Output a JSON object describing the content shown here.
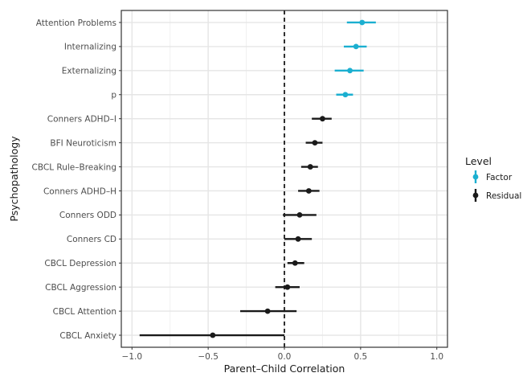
{
  "chart_data": {
    "type": "forest",
    "xlabel": "Parent–Child Correlation",
    "ylabel": "Psychopathology",
    "xlim": [
      -1.07,
      1.07
    ],
    "xticks": [
      -1.0,
      -0.5,
      0.0,
      0.5,
      1.0
    ],
    "xtick_labels": [
      "−1.0",
      "−0.5",
      "0.0",
      "0.5",
      "1.0"
    ],
    "reference_line": 0.0,
    "grid": true,
    "legend": {
      "title": "Level",
      "position": "right",
      "entries": [
        {
          "label": "Factor",
          "color": "#1bafd0"
        },
        {
          "label": "Residual",
          "color": "#1a1a1a"
        }
      ]
    },
    "rows": [
      {
        "label": "Attention Problems",
        "level": "Factor",
        "estimate": 0.51,
        "lower": 0.41,
        "upper": 0.6
      },
      {
        "label": "Internalizing",
        "level": "Factor",
        "estimate": 0.47,
        "lower": 0.39,
        "upper": 0.54
      },
      {
        "label": "Externalizing",
        "level": "Factor",
        "estimate": 0.43,
        "lower": 0.33,
        "upper": 0.52
      },
      {
        "label": "p",
        "level": "Factor",
        "estimate": 0.4,
        "lower": 0.34,
        "upper": 0.45
      },
      {
        "label": "Conners ADHD–I",
        "level": "Residual",
        "estimate": 0.25,
        "lower": 0.18,
        "upper": 0.31
      },
      {
        "label": "BFI Neuroticism",
        "level": "Residual",
        "estimate": 0.2,
        "lower": 0.14,
        "upper": 0.25
      },
      {
        "label": "CBCL Rule–Breaking",
        "level": "Residual",
        "estimate": 0.17,
        "lower": 0.11,
        "upper": 0.22
      },
      {
        "label": "Conners ADHD–H",
        "level": "Residual",
        "estimate": 0.16,
        "lower": 0.09,
        "upper": 0.23
      },
      {
        "label": "Conners ODD",
        "level": "Residual",
        "estimate": 0.1,
        "lower": -0.01,
        "upper": 0.21
      },
      {
        "label": "Conners CD",
        "level": "Residual",
        "estimate": 0.09,
        "lower": 0.0,
        "upper": 0.18
      },
      {
        "label": "CBCL Depression",
        "level": "Residual",
        "estimate": 0.07,
        "lower": 0.02,
        "upper": 0.13
      },
      {
        "label": "CBCL Aggression",
        "level": "Residual",
        "estimate": 0.02,
        "lower": -0.06,
        "upper": 0.1
      },
      {
        "label": "CBCL Attention",
        "level": "Residual",
        "estimate": -0.11,
        "lower": -0.29,
        "upper": 0.08
      },
      {
        "label": "CBCL Anxiety",
        "level": "Residual",
        "estimate": -0.47,
        "lower": -0.95,
        "upper": 0.0
      }
    ]
  }
}
